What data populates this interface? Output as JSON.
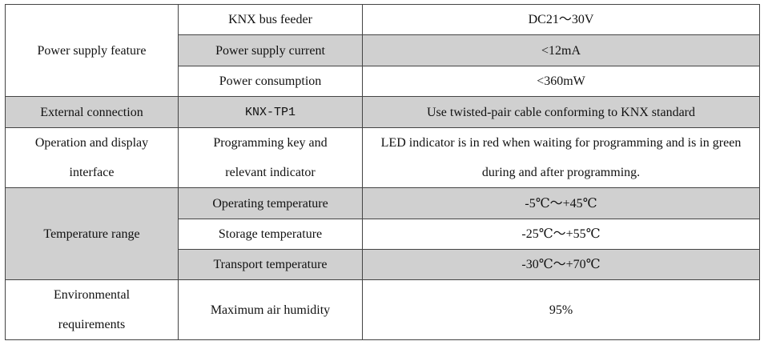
{
  "table": {
    "rows": [
      [
        "Power supply feature",
        "KNX bus feeder",
        "DC21～30V"
      ],
      [
        "Power supply current",
        "<12mA"
      ],
      [
        "Power consumption",
        "<360mW"
      ],
      [
        "External connection",
        "KNX-TP1",
        "Use twisted-pair cable conforming to KNX standard"
      ],
      [
        "Operation and display interface",
        "Programming key and relevant indicator",
        "LED indicator is in red when waiting for programming and is in green during and after programming."
      ],
      [
        "Temperature range",
        "Operating temperature",
        "-5℃～+45℃"
      ],
      [
        "Storage temperature",
        "-25℃～+55℃"
      ],
      [
        "Transport temperature",
        "-30℃～+70℃"
      ],
      [
        "Environmental requirements",
        "Maximum air humidity",
        "95%"
      ]
    ]
  }
}
